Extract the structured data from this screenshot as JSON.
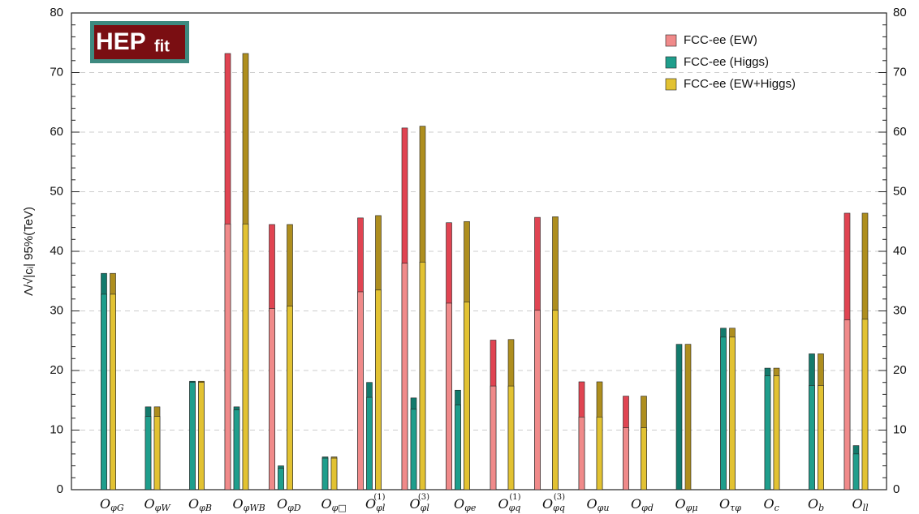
{
  "chart_data": {
    "type": "bar",
    "ylabel": "Λ/√|cᵢ| 95%(TeV)",
    "annotations": [
      "HEP",
      "fit"
    ],
    "categories": [
      "OφG",
      "OφW",
      "OφB",
      "OφWB",
      "OφD",
      "Oφ□",
      "Oφl(1)",
      "Oφl(3)",
      "Oφe",
      "Oφq(1)",
      "Oφq(3)",
      "Oφu",
      "Oφd",
      "Oφμ",
      "Oτφ",
      "Oc",
      "Ob",
      "Oll"
    ],
    "series": [
      {
        "name": "FCC-ee (EW)",
        "color": "#f08a8a",
        "dark_color": "#e04452",
        "values": [
          null,
          null,
          null,
          73.2,
          44.5,
          null,
          45.6,
          60.7,
          44.8,
          25.1,
          45.7,
          18.1,
          15.7,
          null,
          null,
          null,
          null,
          46.4
        ],
        "inner_values": [
          null,
          null,
          null,
          44.6,
          30.4,
          null,
          33.2,
          38.0,
          31.3,
          17.4,
          30.1,
          12.2,
          10.4,
          null,
          null,
          null,
          null,
          28.5
        ]
      },
      {
        "name": "FCC-ee (Higgs)",
        "color": "#1f9e8c",
        "dark_color": "#137a6c",
        "values": [
          36.3,
          13.9,
          18.2,
          13.9,
          4.0,
          5.5,
          18.0,
          15.4,
          16.7,
          null,
          null,
          null,
          null,
          24.4,
          27.1,
          20.4,
          22.8,
          7.4
        ],
        "inner_values": [
          32.8,
          12.3,
          18.0,
          13.4,
          3.6,
          5.3,
          15.5,
          13.5,
          14.2,
          null,
          null,
          null,
          null,
          null,
          25.6,
          19.1,
          17.5,
          6.0
        ]
      },
      {
        "name": "FCC-ee (EW+Higgs)",
        "color": "#e2c232",
        "dark_color": "#ae8e1e",
        "values": [
          36.3,
          13.9,
          18.2,
          73.2,
          44.5,
          5.5,
          46.0,
          61.0,
          45.0,
          25.2,
          45.8,
          18.1,
          15.7,
          24.4,
          27.1,
          20.4,
          22.8,
          46.4
        ],
        "inner_values": [
          32.8,
          12.3,
          18.0,
          44.6,
          30.8,
          5.3,
          33.5,
          38.2,
          31.5,
          17.4,
          30.1,
          12.2,
          10.4,
          null,
          25.6,
          19.1,
          17.5,
          28.6
        ]
      }
    ],
    "ylim": [
      0,
      80
    ],
    "yticks": [
      0,
      10,
      20,
      30,
      40,
      50,
      60,
      70,
      80
    ],
    "y2lim": [
      0,
      80
    ],
    "y2ticks": [
      0,
      10,
      20,
      30,
      40,
      50,
      60,
      70,
      80
    ],
    "grid": true,
    "legend": "upper right"
  }
}
